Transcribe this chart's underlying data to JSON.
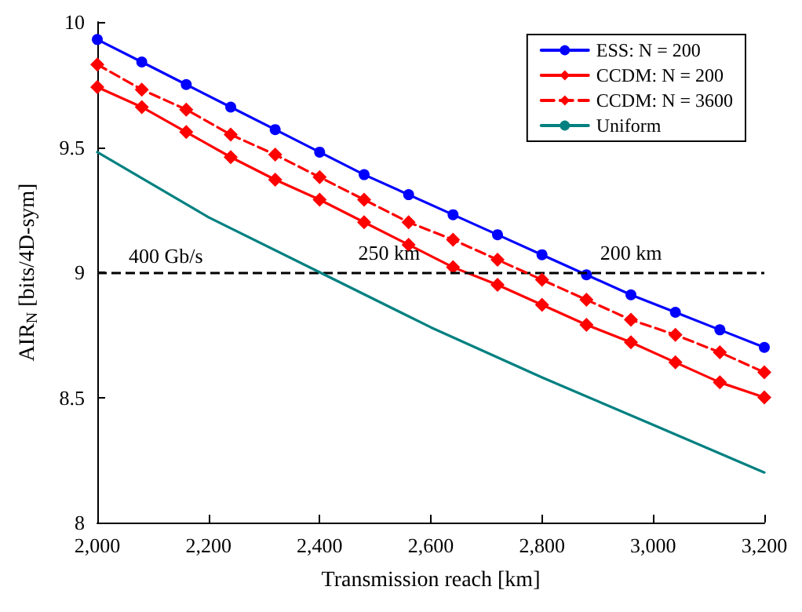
{
  "chart_data": {
    "type": "line",
    "xlabel": "Transmission reach [km]",
    "ylabel": "AIR$_{N}$ [bits/4D-sym]",
    "xlim": [
      2000,
      3200
    ],
    "xticks": [
      {
        "value": 2000,
        "label": "2,000"
      },
      {
        "value": 2200,
        "label": "2,200"
      },
      {
        "value": 2400,
        "label": "2,400"
      },
      {
        "value": 2600,
        "label": "2,600"
      },
      {
        "value": 2800,
        "label": "2,800"
      },
      {
        "value": 3000,
        "label": "3,000"
      },
      {
        "value": 3200,
        "label": "3,200"
      }
    ],
    "ylim": [
      8,
      10
    ],
    "yticks": [
      8,
      8.5,
      9,
      9.5,
      10
    ],
    "grid": false,
    "legend": "top right",
    "x": [
      2000,
      2080,
      2160,
      2240,
      2320,
      2400,
      2480,
      2560,
      2640,
      2720,
      2800,
      2880,
      2960,
      3040,
      3120,
      3200
    ],
    "series": [
      {
        "name": "ESS: N = 200",
        "color": "#0000ff",
        "marker": "circle",
        "line_style": "solid",
        "values": [
          9.93,
          9.84,
          9.75,
          9.66,
          9.57,
          9.48,
          9.39,
          9.31,
          9.23,
          9.15,
          9.07,
          8.99,
          8.91,
          8.84,
          8.77,
          8.7
        ]
      },
      {
        "name": "CCDM: N = 200",
        "color": "#ff0000",
        "marker": "diamond",
        "line_style": "solid",
        "values": [
          9.74,
          9.66,
          9.56,
          9.46,
          9.37,
          9.29,
          9.2,
          9.11,
          9.02,
          8.95,
          8.87,
          8.79,
          8.72,
          8.64,
          8.56,
          8.5
        ]
      },
      {
        "name": "CCDM: N = 3600",
        "color": "#ff0000",
        "marker": "diamond",
        "line_style": "dashed",
        "values": [
          9.83,
          9.73,
          9.65,
          9.55,
          9.47,
          9.38,
          9.29,
          9.2,
          9.13,
          9.05,
          8.97,
          8.89,
          8.81,
          8.75,
          8.68,
          8.6
        ]
      },
      {
        "name": "Uniform",
        "color": "#008080",
        "marker": "none",
        "line_style": "solid",
        "x": [
          2000,
          2200,
          2400,
          2600,
          2800,
          3000,
          3200
        ],
        "values": [
          9.48,
          9.22,
          9.0,
          8.78,
          8.58,
          8.39,
          8.2
        ]
      }
    ],
    "ref_lines": [
      {
        "axis": "y",
        "value": 9,
        "label": "400 Gb/s",
        "color": "#000000",
        "line_style": "dashed"
      }
    ],
    "annotations": [
      {
        "text": "250 km",
        "x": 2525,
        "y": 9
      },
      {
        "text": "200 km",
        "x": 2960,
        "y": 9
      }
    ]
  }
}
